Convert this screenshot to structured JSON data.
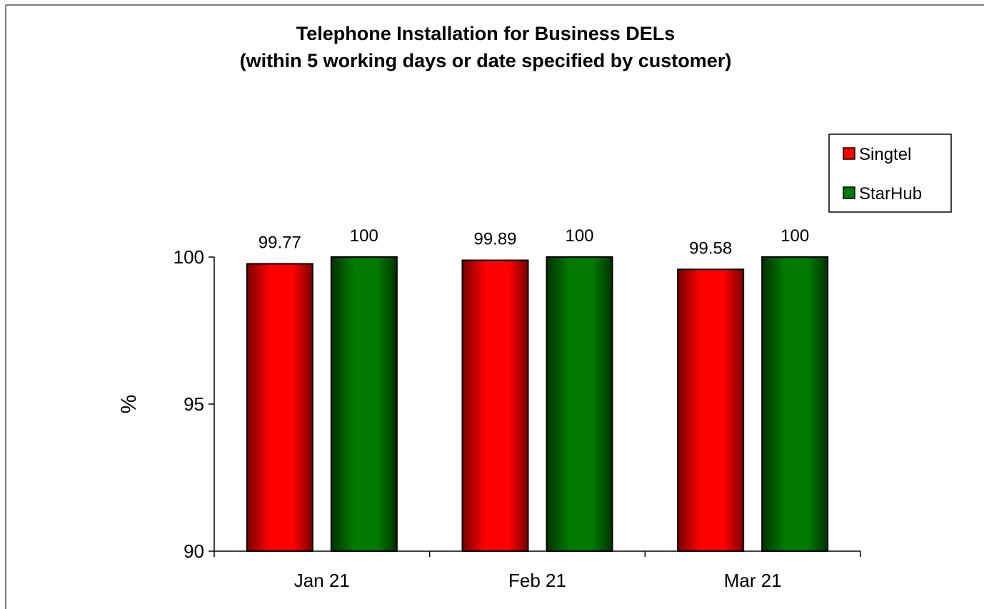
{
  "colors": {
    "singtel": "#ff0000",
    "starhub": "#007a00",
    "axis": "#000000",
    "frame": "#000000"
  },
  "chart_data": {
    "type": "bar",
    "title_lines": [
      "Telephone Installation for Business DELs",
      "(within 5 working days or date specified by customer)"
    ],
    "xlabel": "",
    "ylabel": "%",
    "categories": [
      "Jan 21",
      "Feb 21",
      "Mar 21"
    ],
    "series": [
      {
        "name": "Singtel",
        "values": [
          99.77,
          99.89,
          99.58
        ],
        "labels": [
          "99.77",
          "99.89",
          "99.58"
        ]
      },
      {
        "name": "StarHub",
        "values": [
          100,
          100,
          100
        ],
        "labels": [
          "100",
          "100",
          "100"
        ]
      }
    ],
    "ylim": [
      90,
      100
    ],
    "yticks": [
      90,
      95,
      100
    ],
    "ytick_labels": [
      "90",
      "95",
      "100"
    ],
    "grid": false,
    "legend_position": "top-right"
  }
}
